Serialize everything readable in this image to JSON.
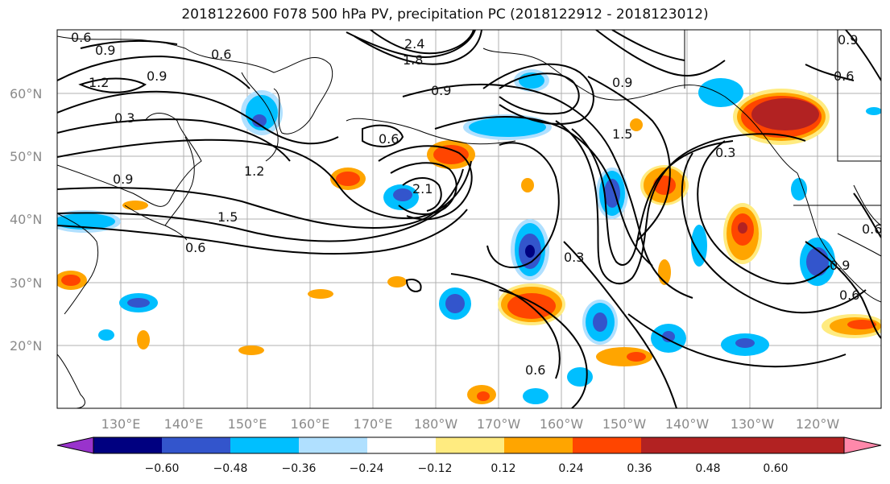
{
  "title": "2018122600 F078 500 hPa PV, precipitation PC (2018122912 - 2018123012)",
  "map": {
    "lat_ticks": [
      "60°N",
      "50°N",
      "40°N",
      "30°N",
      "20°N"
    ],
    "lon_ticks": [
      "130°E",
      "140°E",
      "150°E",
      "160°E",
      "170°E",
      "180°W",
      "170°W",
      "160°W",
      "150°W",
      "140°W",
      "130°W",
      "120°W"
    ],
    "contour_labels": [
      "0.6",
      "0.9",
      "1.2",
      "0.9",
      "0.6",
      "0.3",
      "0.9",
      "1.2",
      "1.5",
      "0.6",
      "2.4",
      "1.8",
      "0.9",
      "0.6",
      "1.5",
      "2.1",
      "0.3",
      "0.6",
      "0.3",
      "0.9",
      "0.6",
      "0.9",
      "0.6",
      "0.9",
      "0.6"
    ],
    "colors": {
      "land_line": "#000000",
      "grid": "#b0b0b0"
    }
  },
  "colorbar": {
    "ticks": [
      "−0.60",
      "−0.48",
      "−0.36",
      "−0.24",
      "−0.12",
      "0.12",
      "0.24",
      "0.36",
      "0.48",
      "0.60"
    ],
    "colors": [
      "#9933cc",
      "#000080",
      "#3355cc",
      "#00bfff",
      "#b0e0ff",
      "#ffffff",
      "#ffeb80",
      "#ffa500",
      "#ff4500",
      "#b22222",
      "#ff88aa"
    ]
  }
}
